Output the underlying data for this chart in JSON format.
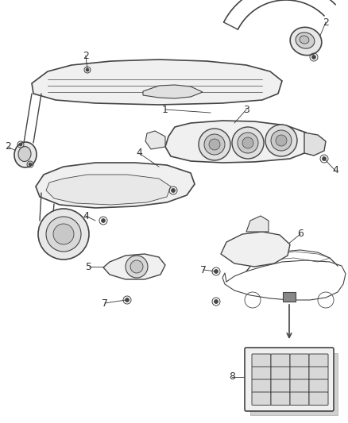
{
  "bg_color": "#ffffff",
  "line_color": "#444444",
  "label_color": "#333333",
  "label_fontsize": 9
}
